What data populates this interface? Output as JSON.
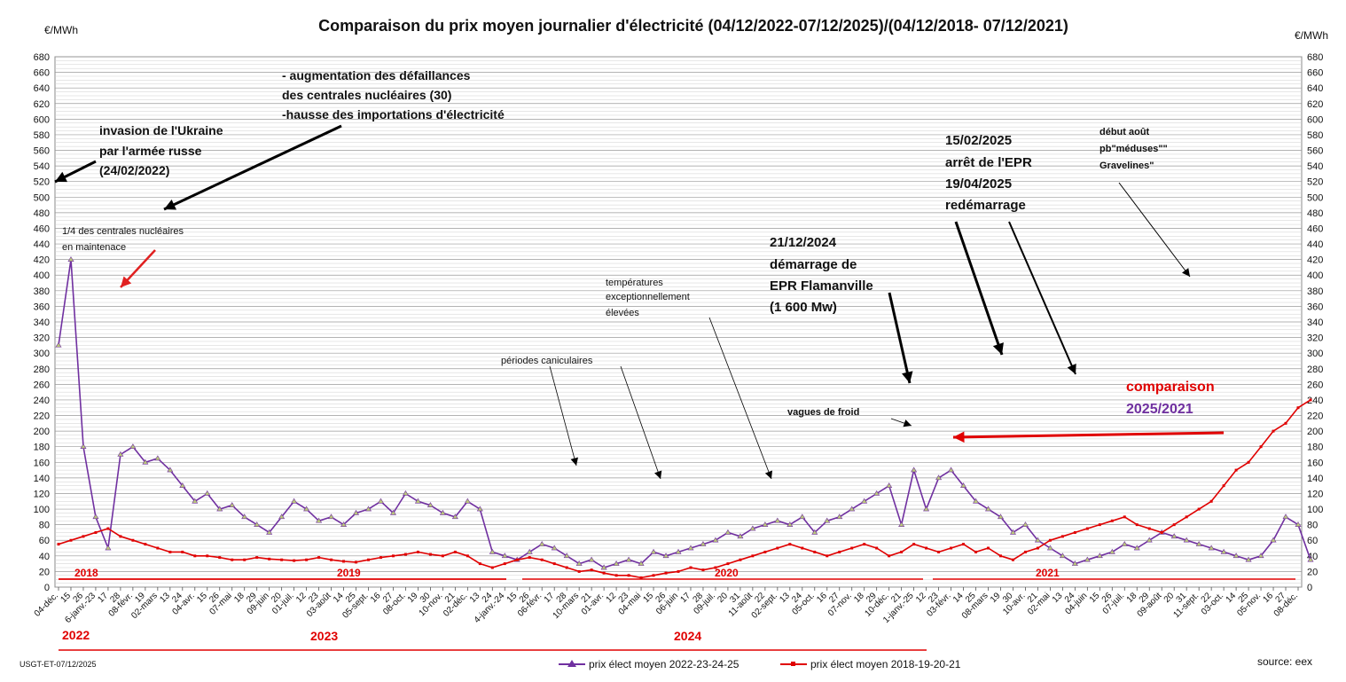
{
  "chart_data": {
    "type": "line",
    "title": "Comparaison du prix moyen journalier d'électricité (04/12/2022-07/12/2025)/(04/12/2018-  07/12/2021)",
    "ylabel_left": "€/MWh",
    "ylabel_right": "€/MWh",
    "ylim": [
      0,
      680
    ],
    "ytick_step": 20,
    "grid": true,
    "legend_position": "bottom",
    "x_tick_labels": [
      "04-déc.",
      "15",
      "26",
      "6-janv.-23",
      "17",
      "28",
      "08-févr.",
      "19",
      "02-mars",
      "13",
      "24",
      "04-avr.",
      "15",
      "26",
      "07-mai",
      "18",
      "29",
      "09-juin",
      "20",
      "01-juil.",
      "12",
      "23",
      "03-août",
      "14",
      "25",
      "05-sept.",
      "16",
      "27",
      "08-oct.",
      "19",
      "30",
      "10-nov.",
      "21",
      "02-déc.",
      "13",
      "24",
      "4-janv.-24",
      "15",
      "26",
      "06-févr.",
      "17",
      "28",
      "10-mars",
      "21",
      "01-avr.",
      "12",
      "23",
      "04-mai",
      "15",
      "26",
      "06-juin",
      "17",
      "28",
      "09-juil.",
      "20",
      "31",
      "11-août",
      "22",
      "02-sept.",
      "13",
      "24",
      "05-oct.",
      "16",
      "27",
      "07-nov.",
      "18",
      "29",
      "10-déc.",
      "21",
      "1-janv.-25",
      "12",
      "23",
      "03-févr.",
      "14",
      "25",
      "08-mars",
      "19",
      "30",
      "10-avr.",
      "21",
      "02-mai",
      "13",
      "24",
      "04-juin",
      "15",
      "26",
      "07-juil.",
      "18",
      "29",
      "09-août",
      "20",
      "31",
      "11-sept.",
      "22",
      "03-oct.",
      "14",
      "25",
      "05-nov.",
      "16",
      "27",
      "08-déc."
    ],
    "series": [
      {
        "name": "prix élect moyen 2022-23-24-25",
        "color": "#7030A0",
        "marker_color": "#B9C77A",
        "x_index": [
          0,
          1,
          2,
          3,
          4,
          5,
          6,
          7,
          8,
          9,
          10,
          11,
          12,
          13,
          14,
          15,
          16,
          17,
          18,
          19,
          20,
          21,
          22,
          23,
          24,
          25,
          26,
          27,
          28,
          29,
          30,
          31,
          32,
          33,
          34,
          35,
          36,
          37,
          38,
          39,
          40,
          41,
          42,
          43,
          44,
          45,
          46,
          47,
          48,
          49,
          50,
          51,
          52,
          53,
          54,
          55,
          56,
          57,
          58,
          59,
          60,
          61,
          62,
          63,
          64,
          65,
          66,
          67,
          68,
          69,
          70,
          71,
          72,
          73,
          74,
          75,
          76,
          77,
          78,
          79,
          80,
          81,
          82,
          83,
          84,
          85,
          86,
          87,
          88,
          89,
          90,
          91,
          92,
          93,
          94,
          95,
          96,
          97,
          98,
          99,
          100,
          101
        ],
        "values": [
          310,
          420,
          180,
          90,
          50,
          170,
          180,
          160,
          165,
          150,
          130,
          110,
          120,
          100,
          105,
          90,
          80,
          70,
          90,
          110,
          100,
          85,
          90,
          80,
          95,
          100,
          110,
          95,
          120,
          110,
          105,
          95,
          90,
          110,
          100,
          45,
          40,
          35,
          45,
          55,
          50,
          40,
          30,
          35,
          25,
          30,
          35,
          30,
          45,
          40,
          45,
          50,
          55,
          60,
          70,
          65,
          75,
          80,
          85,
          80,
          90,
          70,
          85,
          90,
          100,
          110,
          120,
          130,
          80,
          150,
          100,
          140,
          150,
          130,
          110,
          100,
          90,
          70,
          80,
          60,
          50,
          40,
          30,
          35,
          40,
          45,
          55,
          50,
          60,
          70,
          65,
          60,
          55,
          50,
          45,
          40,
          35,
          40,
          60,
          90,
          80,
          35
        ]
      },
      {
        "name": "prix élect moyen 2018-19-20-21",
        "color": "#E00000",
        "marker_color": "#E00000",
        "x_index": [
          0,
          1,
          2,
          3,
          4,
          5,
          6,
          7,
          8,
          9,
          10,
          11,
          12,
          13,
          14,
          15,
          16,
          17,
          18,
          19,
          20,
          21,
          22,
          23,
          24,
          25,
          26,
          27,
          28,
          29,
          30,
          31,
          32,
          33,
          34,
          35,
          36,
          37,
          38,
          39,
          40,
          41,
          42,
          43,
          44,
          45,
          46,
          47,
          48,
          49,
          50,
          51,
          52,
          53,
          54,
          55,
          56,
          57,
          58,
          59,
          60,
          61,
          62,
          63,
          64,
          65,
          66,
          67,
          68,
          69,
          70,
          71,
          72,
          73,
          74,
          75,
          76,
          77,
          78,
          79,
          80,
          81,
          82,
          83,
          84,
          85,
          86,
          87,
          88,
          89,
          90,
          91,
          92,
          93,
          94,
          95,
          96,
          97,
          98,
          99,
          100,
          101
        ],
        "values": [
          55,
          60,
          65,
          70,
          75,
          65,
          60,
          55,
          50,
          45,
          45,
          40,
          40,
          38,
          35,
          35,
          38,
          36,
          35,
          34,
          35,
          38,
          35,
          33,
          32,
          35,
          38,
          40,
          42,
          45,
          42,
          40,
          45,
          40,
          30,
          25,
          30,
          35,
          38,
          35,
          30,
          25,
          20,
          22,
          18,
          15,
          15,
          12,
          15,
          18,
          20,
          25,
          22,
          25,
          30,
          35,
          40,
          45,
          50,
          55,
          50,
          45,
          40,
          45,
          50,
          55,
          50,
          40,
          45,
          55,
          50,
          45,
          50,
          55,
          45,
          50,
          40,
          35,
          45,
          50,
          60,
          65,
          70,
          75,
          80,
          85,
          90,
          80,
          75,
          70,
          80,
          90,
          100,
          110,
          130,
          150,
          160,
          180,
          200,
          210,
          230,
          240
        ]
      }
    ],
    "annotations": [
      {
        "text": "invasion de l'Ukraine"
      },
      {
        "text": "par l'armée russe"
      },
      {
        "text": "(24/02/2022)"
      },
      {
        "text": "- augmentation des défaillances"
      },
      {
        "text": "des centrales nucléaires (30)"
      },
      {
        "text": "-hausse des importations d'électricité"
      },
      {
        "text": "1/4 des centrales nucléaires"
      },
      {
        "text": "en maintenace"
      },
      {
        "text": "périodes caniculaires"
      },
      {
        "text": "températures"
      },
      {
        "text": "exceptionnellement"
      },
      {
        "text": "élevées"
      },
      {
        "text": "21/12/2024"
      },
      {
        "text": "démarrage de"
      },
      {
        "text": "EPR Flamanville"
      },
      {
        "text": "(1 600 Mw)"
      },
      {
        "text": "vagues de froid"
      },
      {
        "text": "15/02/2025"
      },
      {
        "text": "arrêt de l'EPR"
      },
      {
        "text": "19/04/2025"
      },
      {
        "text": "redémarrage"
      },
      {
        "text": "début août"
      },
      {
        "text": "pb\"méduses\"\""
      },
      {
        "text": "Gravelines\""
      },
      {
        "text": "comparaison"
      },
      {
        "text": "2025/2021"
      }
    ],
    "period_labels_red": [
      "2018",
      "2019",
      "2020",
      "2021"
    ],
    "year_labels_bottom": [
      "2022",
      "2023",
      "2024"
    ],
    "footer_left": "USGT-ET-07/12/2025",
    "footer_right": "source: eex"
  }
}
